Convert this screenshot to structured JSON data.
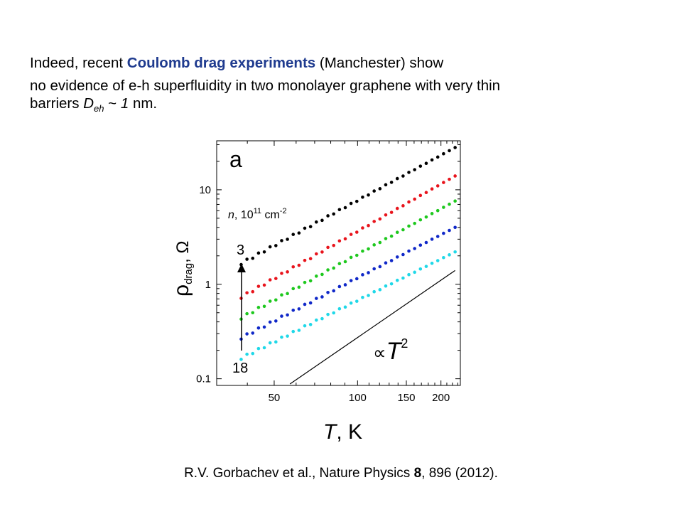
{
  "slide": {
    "line1": {
      "prefix": "Indeed, recent ",
      "highlight": "Coulomb drag experiments",
      "suffix": " (Manchester) show"
    },
    "line2": "no evidence of e-h superfluidity in two monolayer graphene with very thin",
    "line3": {
      "prefix": "barriers ",
      "symbol": "D",
      "sub": "eh",
      "mid": " ~ ",
      "value": "1",
      "suffix": " nm."
    },
    "citation": {
      "prefix": "R.V. Gorbachev et al., Nature Physics ",
      "volume": "8",
      "suffix": ", 896 (2012)."
    }
  },
  "chart_data": {
    "type": "scatter",
    "panel_label": "a",
    "xlabel": {
      "symbol": "T",
      "rest": ", K"
    },
    "ylabel": {
      "symbol": "ρ",
      "sub": "drag",
      "rest": ", Ω"
    },
    "xscale": "log",
    "yscale": "log",
    "xlim": [
      31,
      235
    ],
    "ylim": [
      0.085,
      33
    ],
    "xticks": [
      50,
      100,
      150,
      200
    ],
    "yticks": [
      0.1,
      1,
      10
    ],
    "ytick_labels": [
      "0.1",
      "1",
      "10"
    ],
    "annotations": {
      "density_label": {
        "symbol": "n",
        "rest": ", 10",
        "exp1": "11",
        "unit": " cm",
        "exp2": "-2"
      },
      "arrow_top_label": "3",
      "arrow_bottom_label": "18",
      "reference_label": {
        "prop": "∝",
        "symbol": "T",
        "exp": "2"
      }
    },
    "reference_line": {
      "x": [
        57,
        225
      ],
      "y": [
        0.088,
        1.4
      ]
    },
    "series": [
      {
        "color": "#000000",
        "x_start": 38,
        "x_end": 225,
        "y_start": 1.66,
        "y_end": 28,
        "points": 38
      },
      {
        "color": "#e8141c",
        "x_start": 38,
        "x_end": 225,
        "y_start": 0.73,
        "y_end": 14,
        "points": 38
      },
      {
        "color": "#1ec81e",
        "x_start": 38,
        "x_end": 225,
        "y_start": 0.44,
        "y_end": 7.6,
        "points": 38
      },
      {
        "color": "#1028c8",
        "x_start": 38,
        "x_end": 225,
        "y_start": 0.27,
        "y_end": 4.0,
        "points": 38
      },
      {
        "color": "#20d8e8",
        "x_start": 38,
        "x_end": 225,
        "y_start": 0.165,
        "y_end": 2.2,
        "points": 38
      }
    ]
  }
}
